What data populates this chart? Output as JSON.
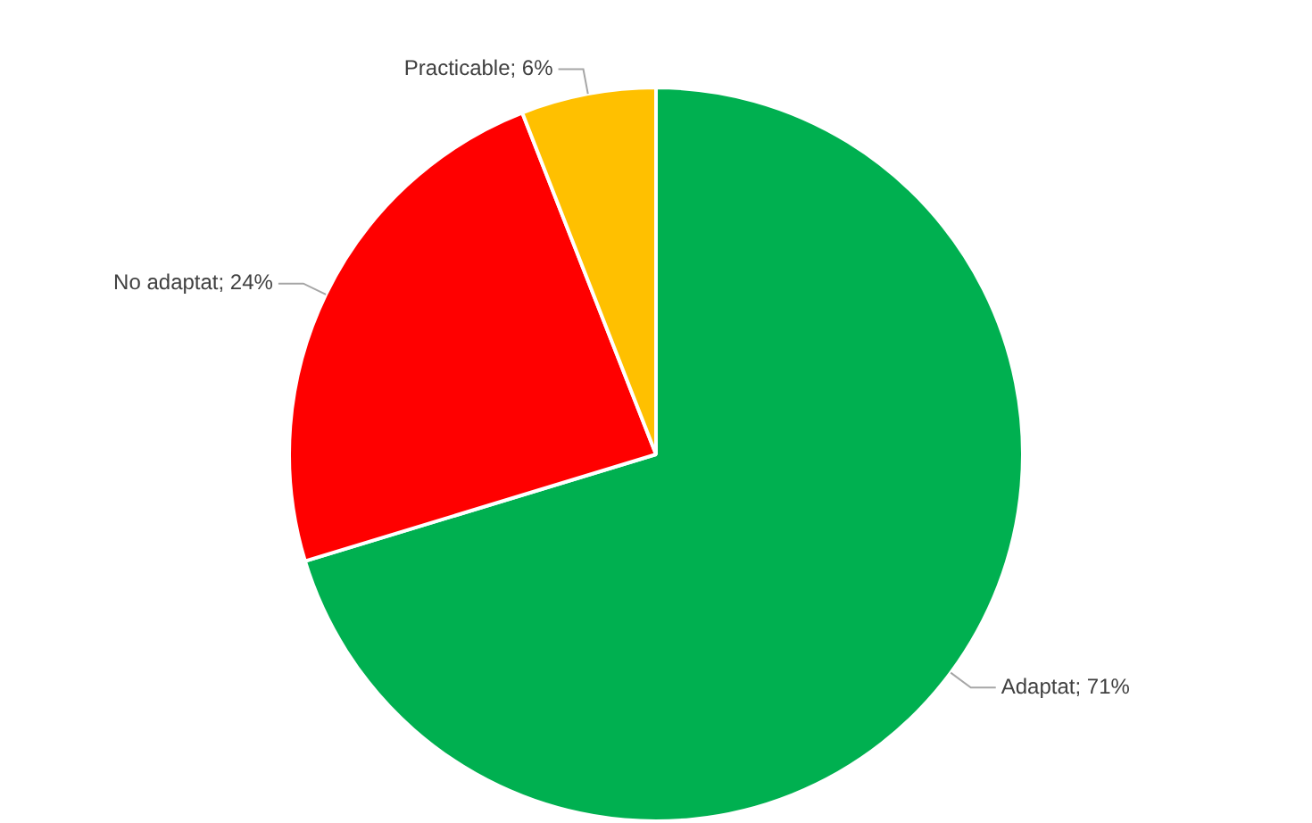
{
  "chart_data": {
    "type": "pie",
    "categories": [
      "Adaptat",
      "No adaptat",
      "Practicable"
    ],
    "values": [
      71,
      24,
      6
    ],
    "colors": [
      "#00b050",
      "#ff0000",
      "#ffc000"
    ],
    "value_labels": [
      "71%",
      "24%",
      "6%"
    ],
    "legend": false
  }
}
